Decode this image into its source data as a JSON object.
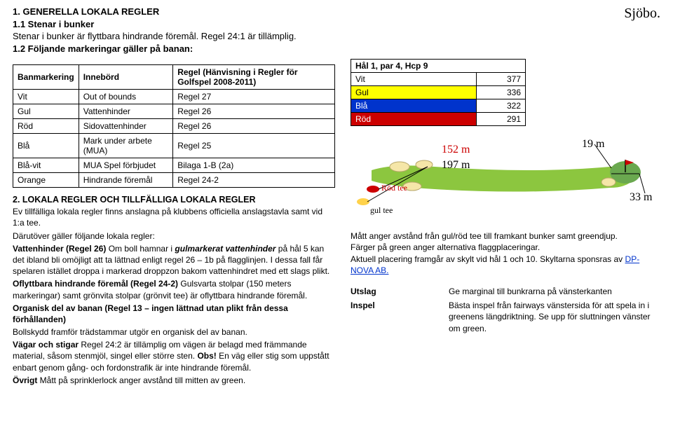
{
  "top": {
    "h1": "1. GENERELLA LOKALA REGLER",
    "h2": "1.1 Stenar i bunker",
    "l1": "Stenar i bunker är flyttbara hindrande föremål. Regel 24:1 är tillämplig.",
    "h3": "1.2 Följande markeringar gäller på banan:",
    "course": "Sjöbo."
  },
  "rules_table": {
    "head": [
      "Banmarkering",
      "Innebörd",
      "Regel (Hänvisning i Regler för Golfspel 2008-2011)"
    ],
    "rows": [
      [
        "Vit",
        "Out of bounds",
        "Regel 27"
      ],
      [
        "Gul",
        "Vattenhinder",
        "Regel 26"
      ],
      [
        "Röd",
        "Sidovattenhinder",
        "Regel 26"
      ],
      [
        "Blå",
        "Mark under arbete (MUA)",
        "Regel 25"
      ],
      [
        "Blå-vit",
        "MUA Spel förbjudet",
        "Bilaga 1-B (2a)"
      ],
      [
        "Orange",
        "Hindrande föremål",
        "Regel 24-2"
      ]
    ]
  },
  "section2": {
    "title": "2. LOKALA REGLER OCH TILLFÄLLIGA LOKALA REGLER",
    "p1": "Ev tillfälliga lokala regler finns anslagna på klubbens officiella anslagstavla samt vid 1:a tee.",
    "p2": "Därutöver gäller följande lokala regler:",
    "p3a": "Vattenhinder (Regel 26)",
    "p3b": " Om boll hamnar i ",
    "p3c": "gulmarkerat vattenhinder",
    "p3d": " på hål 5 kan det ibland bli omöjligt att ta lättnad enligt regel 26 – 1b på flagglinjen. I dessa fall får spelaren istället droppa i markerad droppzon bakom vattenhindret med ett slags plikt.",
    "p4a": "Oflyttbara hindrande föremål (Regel 24-2)",
    "p4b": " Gulsvarta stolpar (150 meters markeringar) samt grönvita stolpar (grönvit tee) är oflyttbara hindrande föremål.",
    "p5a": "Organisk del av banan (Regel 13 – ingen lättnad utan plikt från dessa förhållanden)",
    "p5b": "Bollskydd framför trädstammar utgör en organisk del av banan.",
    "p6a": "Vägar och stigar",
    "p6b": " Regel 24:2 är tillämplig om vägen är belagd med främmande material, såsom stenmjöl, singel eller större sten. ",
    "p6c": "Obs!",
    "p6d": " En väg eller stig som uppstått enbart genom gång- och fordonstrafik är inte hindrande föremål.",
    "p7a": "Övrigt",
    "p7b": " Mått på sprinklerlock anger avstånd till mitten av green."
  },
  "hole": {
    "title": "Hål 1, par 4, Hcp 9",
    "colors": {
      "Vit": "#ffffff",
      "Gul": "#ffff00",
      "Blå": "#0033cc",
      "Röd": "#cc0000"
    },
    "text_colors": {
      "Vit": "#000000",
      "Gul": "#000000",
      "Blå": "#ffffff",
      "Röd": "#ffffff"
    },
    "tees": [
      [
        "Vit",
        377
      ],
      [
        "Gul",
        336
      ],
      [
        "Blå",
        322
      ],
      [
        "Röd",
        291
      ]
    ]
  },
  "diagram": {
    "labels": {
      "d152": "152 m",
      "d197": "197 m",
      "d19": "19 m",
      "d33": "33 m",
      "rodtee": "Röd tee",
      "gultee": "gul tee"
    },
    "colors": {
      "fairway": "#8cc63f",
      "bunker": "#f5e6a8",
      "green": "#6aa84f",
      "tee_red": "#cc0000",
      "tee_yellow": "#ffd24a",
      "label_red": "#cc0000",
      "label_black": "#000000",
      "flag": "#cc0000",
      "line": "#000000"
    }
  },
  "right_notes": {
    "p1": "Mått anger avstånd från gul/röd tee till framkant bunker samt greendjup.",
    "p2": "Färger på green anger alternativa flaggplaceringar.",
    "p3a": "Aktuell placering framgår av skylt vid hål 1 och 10. Skyltarna sponsras av ",
    "p3link": "DP-NOVA AB.",
    "utslag": "Utslag",
    "utslag_txt": "Ge marginal till bunkrarna på vänsterkanten",
    "inspel": "Inspel",
    "inspel_txt": "Bästa inspel från fairways vänstersida för att spela in i greenens längdriktning. Se upp för sluttningen vänster om green."
  }
}
